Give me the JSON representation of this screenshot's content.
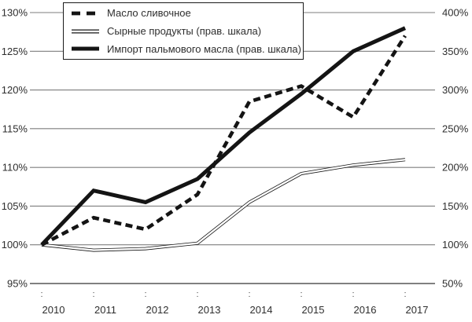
{
  "chart_data": {
    "type": "line",
    "title": "",
    "x": [
      "2010",
      "2011",
      "2012",
      "2013",
      "2014",
      "2015",
      "2016",
      "2017"
    ],
    "left_axis": {
      "unit": "%",
      "min": 95,
      "max": 130,
      "step": 5,
      "tick_labels": [
        "95%",
        "100%",
        "105%",
        "110%",
        "115%",
        "120%",
        "125%",
        "130%"
      ]
    },
    "right_axis": {
      "unit": "%",
      "min": 50,
      "max": 400,
      "step": 50,
      "tick_labels": [
        "50%",
        "100%",
        "150%",
        "200%",
        "250%",
        "300%",
        "350%",
        "400%"
      ]
    },
    "grid": true,
    "legend_position": "top-left",
    "series": [
      {
        "name": "Масло сливочное",
        "axis": "left",
        "line_style": "thick-dashed",
        "color": "#141414",
        "values": [
          100,
          103.5,
          102,
          106.5,
          118.5,
          120.5,
          116.5,
          127
        ]
      },
      {
        "name": "Сырные продукты (прав. шкала)",
        "axis": "right",
        "line_style": "double-thin",
        "color": "#141414",
        "values": [
          100,
          93,
          95,
          102,
          155,
          192,
          203,
          210
        ]
      },
      {
        "name": "Импорт пальмового масла (прав. шкала)",
        "axis": "right",
        "line_style": "thick-solid",
        "color": "#141414",
        "values": [
          100,
          170,
          155,
          185,
          245,
          295,
          350,
          380
        ]
      }
    ],
    "colors": {
      "line": "#141414",
      "grid": "#7e7e7e",
      "axis": "#565656",
      "text": "#2e2e2e",
      "background": "#ffffff"
    }
  }
}
